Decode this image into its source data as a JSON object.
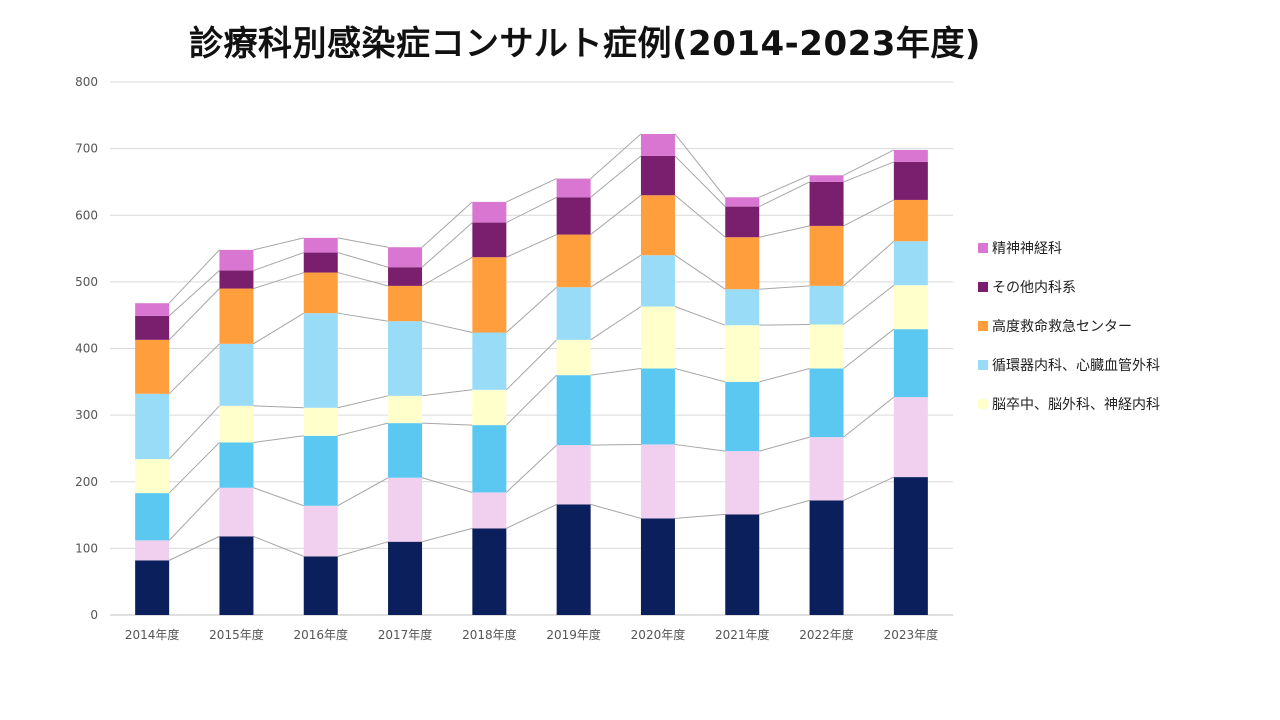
{
  "chart_data": {
    "type": "bar",
    "stacked": true,
    "title": "診療科別感染症コンサルト症例(2014-2023年度)",
    "categories": [
      "2014年度",
      "2015年度",
      "2016年度",
      "2017年度",
      "2018年度",
      "2019年度",
      "2020年度",
      "2021年度",
      "2022年度",
      "2023年度"
    ],
    "ylim": [
      0,
      800
    ],
    "yticks": [
      0,
      100,
      200,
      300,
      400,
      500,
      600,
      700,
      800
    ],
    "grid": true,
    "series_connector_lines": true,
    "legend_position": "right",
    "series": [
      {
        "name": "",
        "color": "#0a1f5c",
        "values": [
          82,
          118,
          88,
          110,
          130,
          166,
          145,
          151,
          172,
          207
        ]
      },
      {
        "name": "",
        "color": "#f0d0ee",
        "values": [
          30,
          73,
          76,
          96,
          54,
          89,
          111,
          95,
          95,
          120
        ]
      },
      {
        "name": "",
        "color": "#5bc8f2",
        "values": [
          71,
          68,
          105,
          82,
          101,
          105,
          114,
          104,
          103,
          102
        ]
      },
      {
        "name": "脳卒中、脳外科、神経内科",
        "color": "#ffffcc",
        "values": [
          51,
          55,
          42,
          41,
          53,
          53,
          93,
          85,
          66,
          66
        ]
      },
      {
        "name": "循環器内科、心臓血管外科",
        "color": "#99dcf7",
        "values": [
          98,
          93,
          142,
          112,
          86,
          79,
          77,
          54,
          58,
          66
        ]
      },
      {
        "name": "高度救命救急センター",
        "color": "#ff9e3d",
        "values": [
          81,
          83,
          61,
          53,
          113,
          79,
          90,
          78,
          90,
          62
        ]
      },
      {
        "name": "その他内科系",
        "color": "#7a1f6e",
        "values": [
          36,
          27,
          30,
          28,
          52,
          56,
          59,
          46,
          66,
          57
        ]
      },
      {
        "name": "精神神経科",
        "color": "#d876d2",
        "values": [
          19,
          31,
          22,
          30,
          31,
          28,
          33,
          14,
          10,
          18
        ]
      }
    ]
  }
}
